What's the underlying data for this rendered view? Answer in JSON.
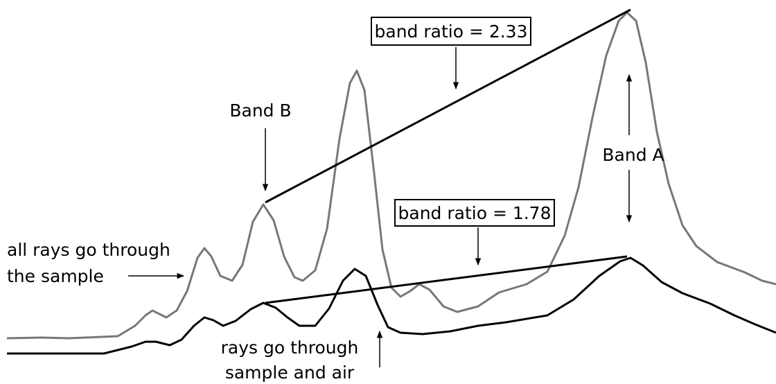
{
  "labels": {
    "ratio_top": "band ratio = 2.33",
    "band_b": "Band B",
    "band_a": "Band A",
    "ratio_bottom": "band ratio = 1.78",
    "all_rays": [
      "all rays go through",
      "the sample"
    ],
    "sample_air": [
      "rays go through",
      "sample and air"
    ]
  }
}
